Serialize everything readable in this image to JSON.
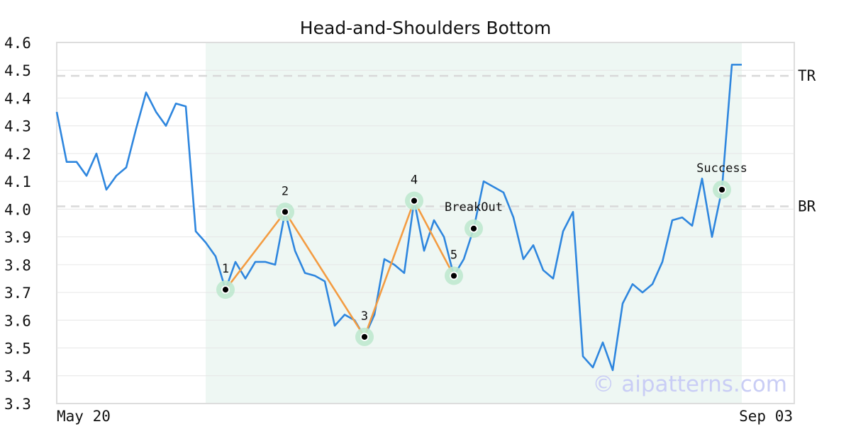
{
  "chart_data": {
    "type": "line",
    "title": "Head-and-Shoulders Bottom",
    "xlabel": "",
    "ylabel": "",
    "x_tick_labels": [
      "May 20",
      "Sep 03"
    ],
    "ylim": [
      3.3,
      4.6
    ],
    "y_ticks": [
      3.3,
      3.4,
      3.5,
      3.6,
      3.7,
      3.8,
      3.9,
      4.0,
      4.1,
      4.2,
      4.3,
      4.4,
      4.5,
      4.6
    ],
    "grid": true,
    "watermark": "© aipatterns.com",
    "series": [
      {
        "color": "#2e86de",
        "values": [
          4.35,
          4.17,
          4.17,
          4.12,
          4.2,
          4.07,
          4.12,
          4.15,
          4.29,
          4.42,
          4.35,
          4.3,
          4.38,
          4.37,
          3.92,
          3.88,
          3.83,
          3.71,
          3.81,
          3.75,
          3.81,
          3.81,
          3.8,
          3.99,
          3.85,
          3.77,
          3.76,
          3.74,
          3.58,
          3.62,
          3.6,
          3.54,
          3.62,
          3.82,
          3.8,
          3.77,
          4.03,
          3.85,
          3.96,
          3.9,
          3.76,
          3.82,
          3.93,
          4.1,
          4.08,
          4.06,
          3.97,
          3.82,
          3.87,
          3.78,
          3.75,
          3.92,
          3.99,
          3.47,
          3.43,
          3.52,
          3.42,
          3.66,
          3.73,
          3.7,
          3.73,
          3.81,
          3.96,
          3.97,
          3.94,
          4.11,
          3.9,
          4.07,
          4.52,
          4.52
        ]
      }
    ],
    "pattern": {
      "color": "#f39c42",
      "shade_start_index": 15,
      "shade_end_index": 69,
      "shade_color": "#eef7f3",
      "points": [
        {
          "label": "1",
          "index": 17,
          "value": 3.71
        },
        {
          "label": "2",
          "index": 23,
          "value": 3.99
        },
        {
          "label": "3",
          "index": 31,
          "value": 3.54
        },
        {
          "label": "4",
          "index": 36,
          "value": 4.03
        },
        {
          "label": "5",
          "index": 40,
          "value": 3.76
        }
      ],
      "breakout": {
        "label": "BreakOut",
        "index": 42,
        "value": 3.93
      },
      "success": {
        "label": "Success",
        "index": 67,
        "value": 4.07
      }
    },
    "reference_lines": [
      {
        "label": "TR",
        "value": 4.48
      },
      {
        "label": "BR",
        "value": 4.01
      }
    ]
  }
}
